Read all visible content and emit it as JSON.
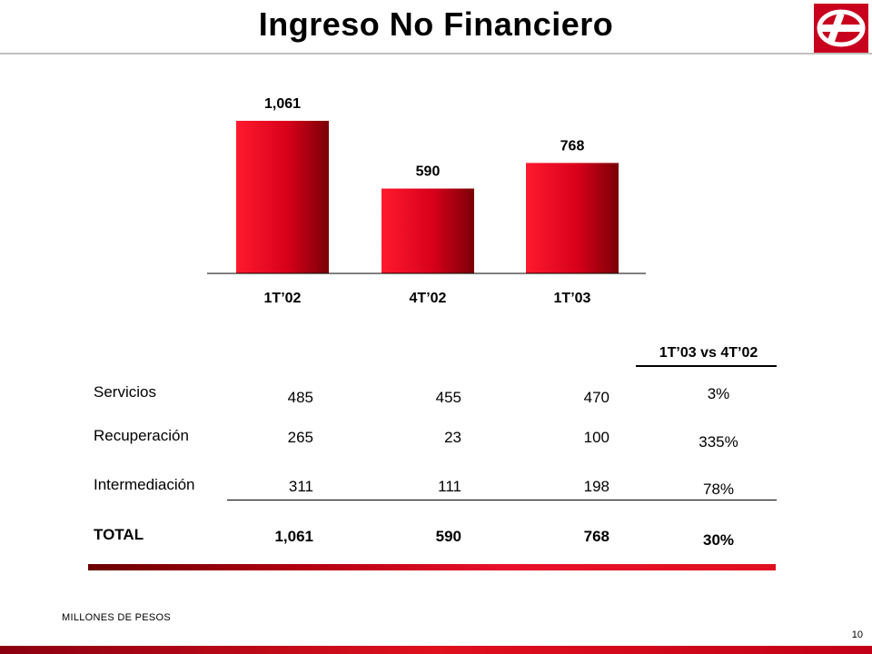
{
  "header": {
    "title": "Ingreso No Financiero"
  },
  "chart_data": {
    "type": "bar",
    "categories": [
      "1T’02",
      "4T’02",
      "1T’03"
    ],
    "values": [
      1061,
      590,
      768
    ],
    "value_labels": [
      "1,061",
      "590",
      "768"
    ],
    "title": "",
    "xlabel": "",
    "ylabel": "",
    "ylim": [
      0,
      1200
    ],
    "bar_color": "#e0101e",
    "bar_dark_color": "#8a0008",
    "grid": false
  },
  "table": {
    "comparison_header": "1T’03 vs 4T’02",
    "rows": [
      {
        "label": "Servicios",
        "v1": "485",
        "v2": "455",
        "v3": "470",
        "pct": "3%"
      },
      {
        "label": "Recuperación",
        "v1": "265",
        "v2": "23",
        "v3": "100",
        "pct": "335%"
      },
      {
        "label": "Intermediación",
        "v1": "311",
        "v2": "111",
        "v3": "198",
        "pct": "78%"
      }
    ],
    "total": {
      "label": "TOTAL",
      "v1": "1,061",
      "v2": "590",
      "v3": "768",
      "pct": "30%"
    }
  },
  "footer": {
    "units_note": "MILLONES DE PESOS",
    "page_number": "10"
  },
  "colors": {
    "accent": "#e0101e",
    "logo_bg": "#c8001e"
  }
}
